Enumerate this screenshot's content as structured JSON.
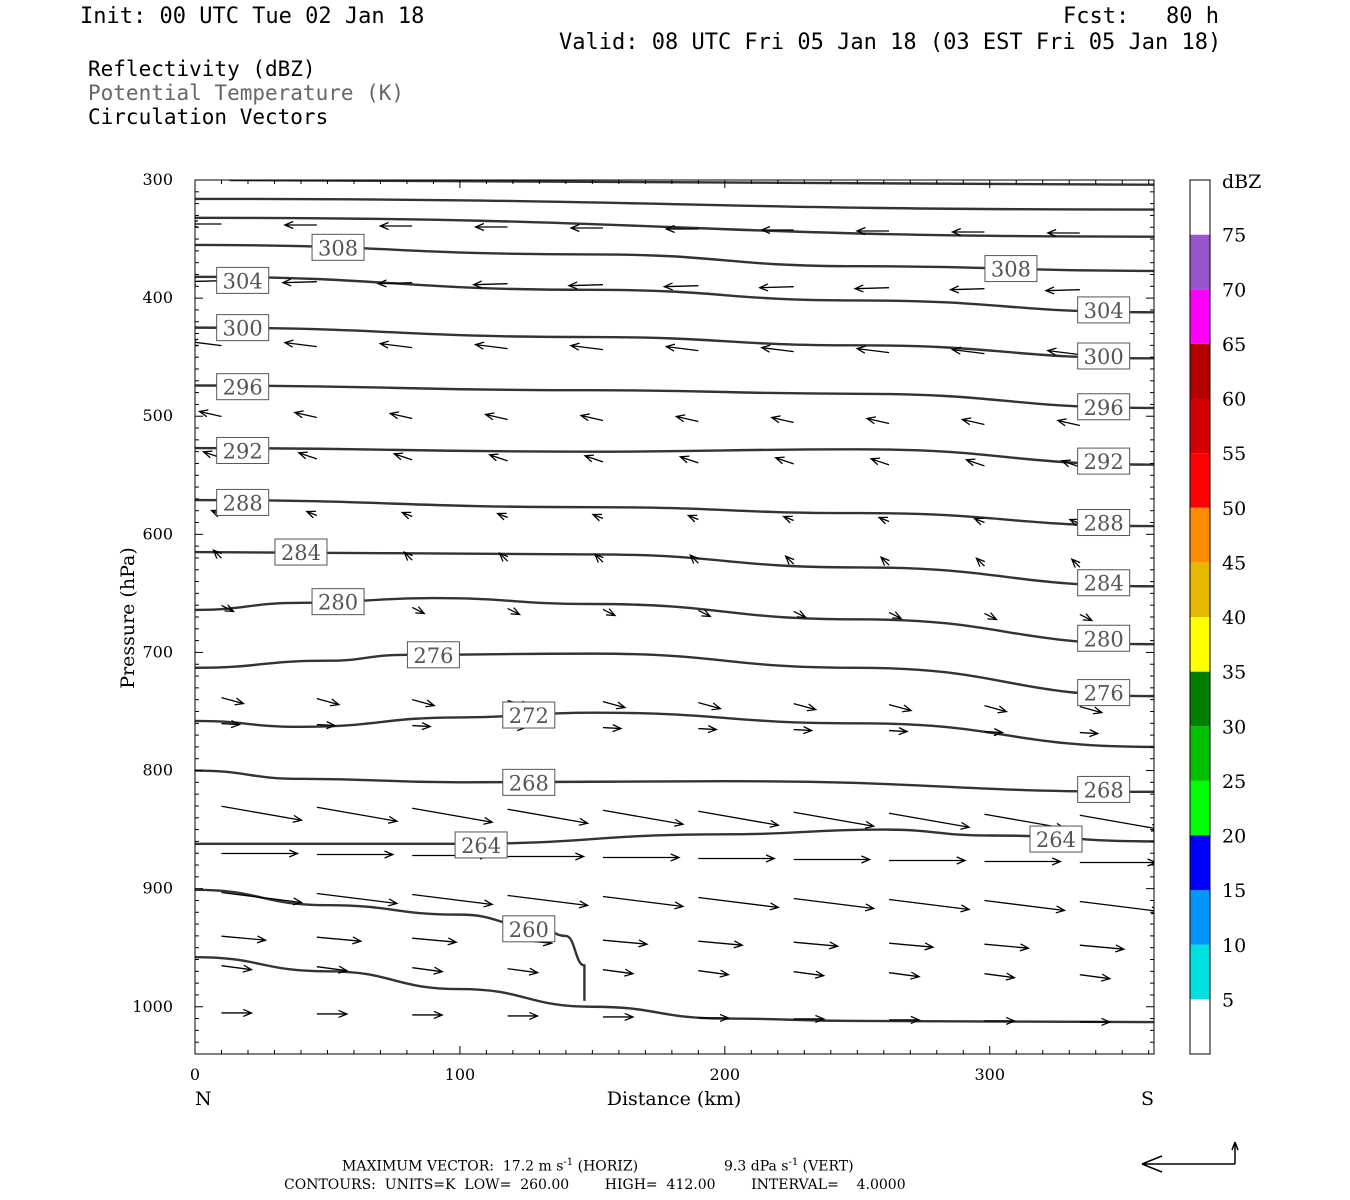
{
  "header": {
    "init": "Init: 00 UTC Tue 02 Jan 18",
    "fcst_label": "Fcst:",
    "fcst_value": "80 h",
    "valid": "Valid: 08 UTC Fri 05 Jan 18 (03 EST Fri 05 Jan 18)"
  },
  "fields": {
    "reflectivity": "Reflectivity (dBZ)",
    "theta": "Potential Temperature (K)",
    "vectors": "Circulation Vectors"
  },
  "colors": {
    "contour": "#333333",
    "theta_text": "#666666",
    "colorbar": [
      "#ffffff",
      "#00e0e0",
      "#0096ff",
      "#0000ff",
      "#00ff00",
      "#00c000",
      "#008000",
      "#ffff00",
      "#e6b800",
      "#ff8c00",
      "#ff0000",
      "#d20000",
      "#b40000",
      "#ff00ff",
      "#9955cc",
      "#ffffff"
    ]
  },
  "chart_data": {
    "type": "cross-section",
    "ylabel": "Pressure (hPa)",
    "xlabel": "Distance (km)",
    "x_left_label": "N",
    "x_right_label": "S",
    "xlim": [
      0,
      362
    ],
    "ylim": [
      300,
      1040
    ],
    "y_ticks": [
      "300",
      "400",
      "500",
      "600",
      "700",
      "800",
      "900",
      "1000"
    ],
    "x_ticks": [
      "0",
      "100",
      "200",
      "300"
    ],
    "x_tick_values": [
      0,
      100,
      200,
      300
    ],
    "y_tick_values": [
      300,
      400,
      500,
      600,
      700,
      800,
      900,
      1000
    ],
    "colorbar": {
      "unit": "dBZ",
      "labels": [
        "5",
        "10",
        "15",
        "20",
        "25",
        "30",
        "35",
        "40",
        "45",
        "50",
        "55",
        "60",
        "65",
        "70",
        "75"
      ],
      "levels": [
        5,
        10,
        15,
        20,
        25,
        30,
        35,
        40,
        45,
        50,
        55,
        60,
        65,
        70,
        75
      ]
    },
    "isentropes": [
      {
        "label": "",
        "points": [
          [
            13,
            300
          ],
          [
            362,
            304
          ]
        ]
      },
      {
        "label": "",
        "points": [
          [
            0,
            316
          ],
          [
            362,
            325
          ]
        ]
      },
      {
        "label": "",
        "points": [
          [
            0,
            332
          ],
          [
            362,
            348
          ]
        ]
      },
      {
        "label": "308",
        "points": [
          [
            0,
            355
          ],
          [
            150,
            363
          ],
          [
            250,
            373
          ],
          [
            362,
            377
          ]
        ],
        "label_at": [
          [
            54,
            357
          ],
          [
            308,
            375
          ]
        ]
      },
      {
        "label": "304",
        "points": [
          [
            0,
            382
          ],
          [
            150,
            393
          ],
          [
            250,
            402
          ],
          [
            362,
            412
          ]
        ],
        "label_at": [
          [
            18,
            385
          ],
          [
            343,
            410
          ]
        ]
      },
      {
        "label": "300",
        "points": [
          [
            0,
            425
          ],
          [
            150,
            433
          ],
          [
            250,
            440
          ],
          [
            362,
            451
          ]
        ],
        "label_at": [
          [
            18,
            425
          ],
          [
            343,
            449
          ]
        ]
      },
      {
        "label": "296",
        "points": [
          [
            0,
            474
          ],
          [
            150,
            478
          ],
          [
            250,
            481
          ],
          [
            362,
            493
          ]
        ],
        "label_at": [
          [
            18,
            475
          ],
          [
            343,
            492
          ]
        ]
      },
      {
        "label": "292",
        "points": [
          [
            0,
            527
          ],
          [
            150,
            530
          ],
          [
            250,
            528
          ],
          [
            362,
            541
          ]
        ],
        "label_at": [
          [
            18,
            529
          ],
          [
            343,
            538
          ]
        ]
      },
      {
        "label": "288",
        "points": [
          [
            0,
            571
          ],
          [
            150,
            577
          ],
          [
            250,
            582
          ],
          [
            362,
            593
          ]
        ],
        "label_at": [
          [
            18,
            573
          ],
          [
            343,
            590
          ]
        ]
      },
      {
        "label": "284",
        "points": [
          [
            0,
            615
          ],
          [
            150,
            617
          ],
          [
            250,
            628
          ],
          [
            362,
            644
          ]
        ],
        "label_at": [
          [
            40,
            615
          ],
          [
            343,
            641
          ]
        ]
      },
      {
        "label": "280",
        "points": [
          [
            0,
            664
          ],
          [
            40,
            658
          ],
          [
            90,
            654
          ],
          [
            150,
            659
          ],
          [
            250,
            672
          ],
          [
            362,
            693
          ]
        ],
        "label_at": [
          [
            54,
            657
          ],
          [
            343,
            688
          ]
        ]
      },
      {
        "label": "276",
        "points": [
          [
            0,
            713
          ],
          [
            50,
            707
          ],
          [
            80,
            702
          ],
          [
            150,
            701
          ],
          [
            250,
            713
          ],
          [
            362,
            737
          ]
        ],
        "label_at": [
          [
            90,
            702
          ],
          [
            343,
            734
          ]
        ]
      },
      {
        "label": "272",
        "points": [
          [
            0,
            758
          ],
          [
            40,
            763
          ],
          [
            100,
            755
          ],
          [
            150,
            751
          ],
          [
            250,
            760
          ],
          [
            362,
            780
          ]
        ],
        "label_at": [
          [
            126,
            753
          ]
        ]
      },
      {
        "label": "268",
        "points": [
          [
            0,
            800
          ],
          [
            40,
            807
          ],
          [
            100,
            810
          ],
          [
            200,
            809
          ],
          [
            362,
            818
          ]
        ],
        "label_at": [
          [
            126,
            810
          ],
          [
            343,
            816
          ]
        ]
      },
      {
        "label": "264",
        "points": [
          [
            0,
            862
          ],
          [
            100,
            862
          ],
          [
            200,
            854
          ],
          [
            260,
            850
          ],
          [
            300,
            855
          ],
          [
            362,
            860
          ]
        ],
        "label_at": [
          [
            108,
            863
          ],
          [
            325,
            858
          ]
        ]
      },
      {
        "label": "260",
        "points": [
          [
            0,
            901
          ],
          [
            50,
            914
          ],
          [
            100,
            922
          ],
          [
            130,
            933
          ],
          [
            140,
            940
          ],
          [
            147,
            965
          ],
          [
            147,
            995
          ]
        ],
        "label_at": [
          [
            126,
            934
          ]
        ]
      },
      {
        "label": "",
        "points": [
          [
            0,
            958
          ],
          [
            50,
            970
          ],
          [
            100,
            985
          ],
          [
            150,
            1000
          ],
          [
            200,
            1010
          ],
          [
            250,
            1012
          ],
          [
            362,
            1013
          ]
        ]
      }
    ],
    "vectors_note": "arrows point toward N in upper levels, toward S in lower levels"
  },
  "footer": {
    "max_vector": "MAXIMUM VECTOR:  17.2 m s",
    "sup1": "-1",
    "horiz": " (HORIZ)",
    "vert_val": "9.3 dPa s",
    "sup2": "-1",
    "vert": " (VERT)",
    "contours": "CONTOURS:  UNITS=K  LOW=  260.00        HIGH=  412.00        INTERVAL=    4.0000"
  }
}
